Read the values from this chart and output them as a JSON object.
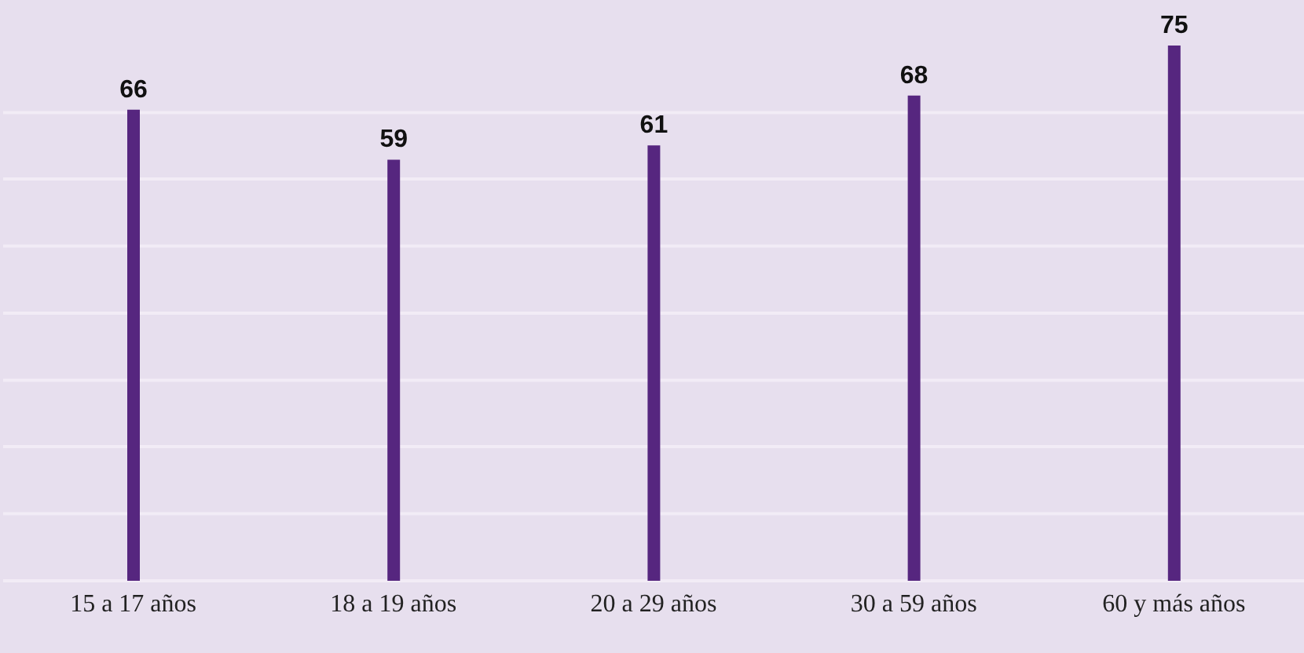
{
  "chart_data": {
    "type": "bar",
    "categories": [
      "15 a 17 años",
      "18 a 19 años",
      "20 a 29 años",
      "30 a 59 años",
      "60 y más años"
    ],
    "values": [
      66,
      59,
      61,
      68,
      75
    ],
    "color": "#56267f",
    "data_labels": true,
    "grid": "y",
    "tick_labels": "x",
    "ylim": [
      0,
      75
    ],
    "yticks": [
      {
        "value": 0,
        "label": null
      },
      {
        "value": 9.4,
        "label": null
      },
      {
        "value": 18.8,
        "label": null
      },
      {
        "value": 28.1,
        "label": null
      },
      {
        "value": 37.5,
        "label": null
      },
      {
        "value": 46.9,
        "label": null
      },
      {
        "value": 56.3,
        "label": null
      },
      {
        "value": 65.6,
        "label": null
      }
    ]
  }
}
